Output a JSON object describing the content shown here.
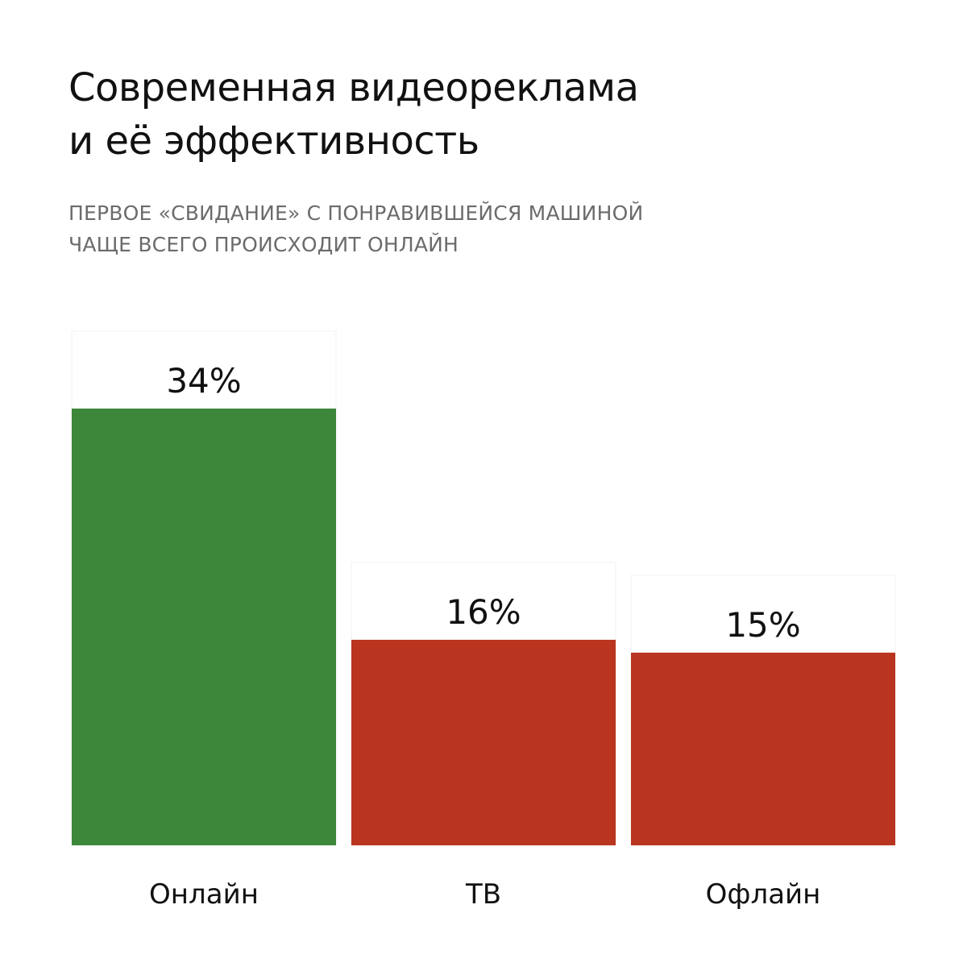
{
  "title_lines": [
    "Современная видеореклама",
    "и её эффективность"
  ],
  "subtitle_lines": [
    "ПЕРВОЕ «СВИДАНИЕ» С ПОНРАВИВШЕЙСЯ МАШИНОЙ",
    "ЧАЩЕ ВСЕГО ПРОИСХОДИТ ОНЛАЙН"
  ],
  "colors": {
    "positive": "#3d873b",
    "negative": "#b9351f",
    "background_box": "#ffffff",
    "text": "#111111",
    "subtitle": "#6b6b6b"
  },
  "chart_data": {
    "type": "bar",
    "title": "Современная видеореклама и её эффективность",
    "subtitle": "Первое «свидание» с понравившейся машиной чаще всего происходит онлайн",
    "categories": [
      "Онлайн",
      "ТВ",
      "Офлайн"
    ],
    "values": [
      34,
      16,
      15
    ],
    "value_labels": [
      "34%",
      "16%",
      "15%"
    ],
    "unit": "%",
    "bar_colors": [
      "#3d873b",
      "#b9351f",
      "#b9351f"
    ],
    "xlabel": "",
    "ylabel": "",
    "ylim": [
      0,
      34
    ],
    "grid": false,
    "legend": "none"
  }
}
